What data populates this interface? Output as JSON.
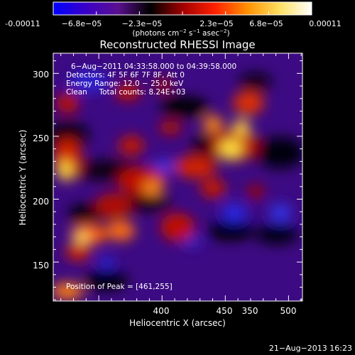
{
  "colorbar": {
    "ticks": [
      "-0.00011",
      "−6.8e−05",
      "−2.3e−05",
      "2.3e−05",
      "6.8e−05",
      "0.00011"
    ],
    "unit_prefix": "(photons cm",
    "unit_exp1": "−2",
    "unit_mid": " s",
    "unit_exp2": "−1",
    "unit_mid2": " asec",
    "unit_exp3": "−2",
    "unit_suffix": ")",
    "colors": [
      "#0000ff",
      "#3a00c8",
      "#5a1090",
      "#000000",
      "#a00000",
      "#ff2000",
      "#ff9000",
      "#ffe060",
      "#ffffff"
    ]
  },
  "plot": {
    "title": "Reconstructed RHESSI Image",
    "info_lines": [
      "6−Aug−2011 04:33:58.000 to 04:39:58.000",
      "Detectors: 4F 5F 6F 7F 8F, Att 0",
      "Energy Range: 12.0 − 25.0 keV",
      "Clean     Total counts: 8.24E+03"
    ],
    "peak_text": "Position of Peak = [461,255]",
    "x_label": "Heliocentric X (arcsec)",
    "y_label": "Heliocentric Y (arcsec)",
    "x_ticks": [
      "350",
      "400",
      "450",
      "500"
    ],
    "y_ticks": [
      "150",
      "200",
      "250",
      "300"
    ],
    "x_range": [
      314,
      511
    ],
    "y_range": [
      119,
      316
    ]
  },
  "footer": {
    "timestamp": "21−Aug−2013 16:23"
  }
}
